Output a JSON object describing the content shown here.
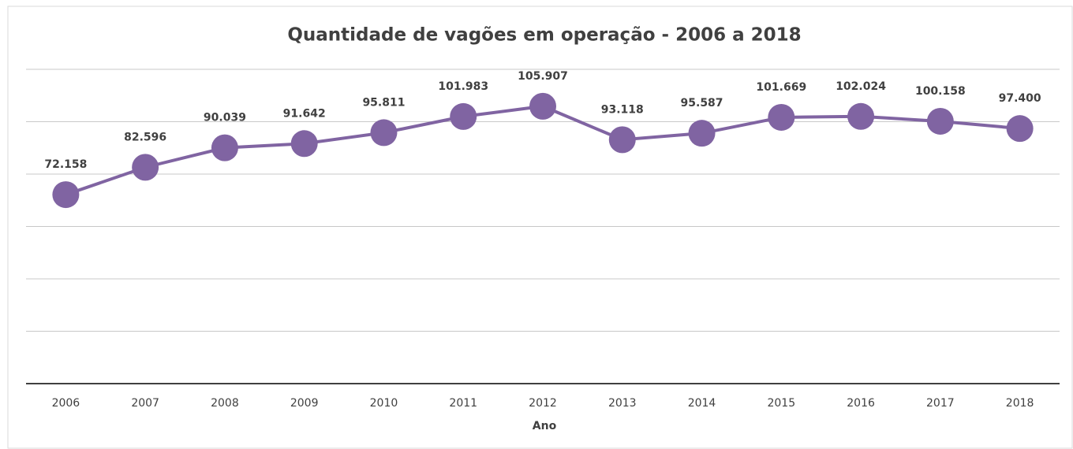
{
  "chart_data": {
    "type": "line",
    "title": "Quantidade de vagões em operação - 2006 a 2018",
    "x_label": "Ano",
    "categories": [
      "2006",
      "2007",
      "2008",
      "2009",
      "2010",
      "2011",
      "2012",
      "2013",
      "2014",
      "2015",
      "2016",
      "2017",
      "2018"
    ],
    "series": [
      {
        "name": "Quantidade de vagões",
        "color": "#8064a2",
        "values": [
          72158,
          82596,
          90039,
          91642,
          95811,
          101983,
          105907,
          93118,
          95587,
          101669,
          102024,
          100158,
          97400
        ],
        "value_labels": [
          "72.158",
          "82.596",
          "90.039",
          "91.642",
          "95.811",
          "101.983",
          "105.907",
          "93.118",
          "95.587",
          "101.669",
          "102.024",
          "100.158",
          "97.400"
        ]
      }
    ],
    "ylim": [
      0,
      120000
    ],
    "yticks": [
      0,
      20000,
      40000,
      60000,
      80000,
      100000,
      120000
    ],
    "grid": true
  }
}
